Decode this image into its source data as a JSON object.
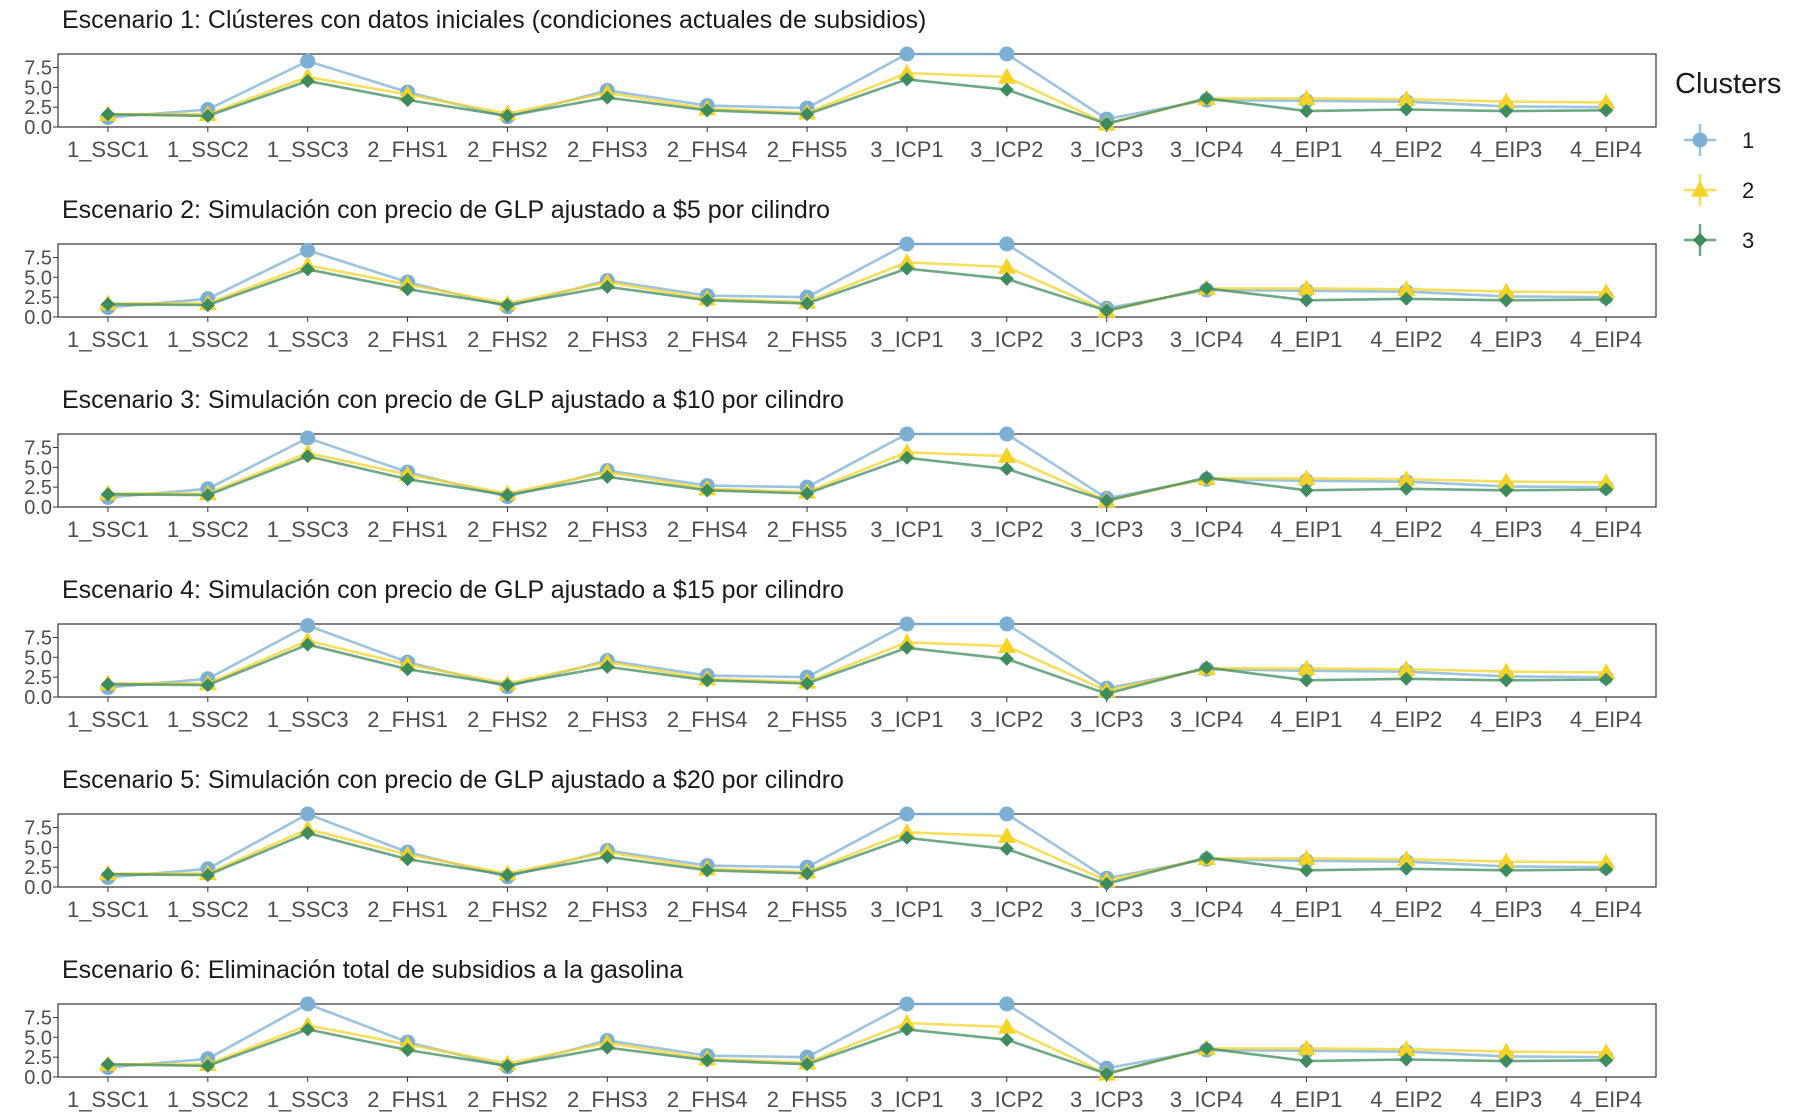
{
  "legend": {
    "title": "Clusters",
    "items": [
      {
        "label": "1",
        "color": "#7BAFD4",
        "shape": "circle"
      },
      {
        "label": "2",
        "color": "#F5D327",
        "shape": "triangle"
      },
      {
        "label": "3",
        "color": "#3D8C5E",
        "shape": "diamond"
      }
    ]
  },
  "chart_data": [
    {
      "type": "line",
      "title": "Escenario 1: Clústeres con datos iniciales (condiciones actuales de subsidios)",
      "categories": [
        "1_SSC1",
        "1_SSC2",
        "1_SSC3",
        "2_FHS1",
        "2_FHS2",
        "2_FHS3",
        "2_FHS4",
        "2_FHS5",
        "3_ICP1",
        "3_ICP2",
        "3_ICP3",
        "3_ICP4",
        "4_EIP1",
        "4_EIP2",
        "4_EIP3",
        "4_EIP4"
      ],
      "yticks": [
        "0.0",
        "2.5",
        "5.0",
        "7.5"
      ],
      "ylim": [
        0,
        9.2
      ],
      "grid": false,
      "legend_position": "right",
      "series": [
        {
          "name": "1",
          "values": [
            1.2,
            2.2,
            8.3,
            4.4,
            1.3,
            4.6,
            2.7,
            2.4,
            9.2,
            9.2,
            1.0,
            3.4,
            3.3,
            3.2,
            2.6,
            2.5
          ]
        },
        {
          "name": "2",
          "values": [
            1.6,
            1.6,
            6.3,
            4.1,
            1.7,
            4.3,
            2.3,
            1.8,
            6.8,
            6.3,
            0.4,
            3.6,
            3.6,
            3.5,
            3.2,
            3.1
          ]
        },
        {
          "name": "3",
          "values": [
            1.6,
            1.4,
            5.8,
            3.4,
            1.4,
            3.7,
            2.1,
            1.6,
            6.0,
            4.7,
            0.4,
            3.6,
            2.0,
            2.2,
            2.0,
            2.1
          ]
        }
      ]
    },
    {
      "type": "line",
      "title": "Escenario 2: Simulación con precio de GLP ajustado a $5 por cilindro",
      "categories": [
        "1_SSC1",
        "1_SSC2",
        "1_SSC3",
        "2_FHS1",
        "2_FHS2",
        "2_FHS3",
        "2_FHS4",
        "2_FHS5",
        "3_ICP1",
        "3_ICP2",
        "3_ICP3",
        "3_ICP4",
        "4_EIP1",
        "4_EIP2",
        "4_EIP3",
        "4_EIP4"
      ],
      "yticks": [
        "0.0",
        "2.5",
        "5.0",
        "7.5"
      ],
      "ylim": [
        0,
        9.2
      ],
      "grid": false,
      "legend_position": "right",
      "series": [
        {
          "name": "1",
          "values": [
            1.2,
            2.3,
            8.4,
            4.4,
            1.3,
            4.6,
            2.7,
            2.5,
            9.2,
            9.2,
            1.1,
            3.4,
            3.3,
            3.2,
            2.6,
            2.5
          ]
        },
        {
          "name": "2",
          "values": [
            1.7,
            1.7,
            6.5,
            4.1,
            1.7,
            4.4,
            2.3,
            1.9,
            6.9,
            6.3,
            0.8,
            3.6,
            3.6,
            3.5,
            3.2,
            3.1
          ]
        },
        {
          "name": "3",
          "values": [
            1.6,
            1.5,
            6.0,
            3.5,
            1.5,
            3.8,
            2.1,
            1.7,
            6.1,
            4.8,
            0.8,
            3.6,
            2.1,
            2.3,
            2.1,
            2.2
          ]
        }
      ]
    },
    {
      "type": "line",
      "title": "Escenario 3: Simulación con precio de GLP ajustado a $10 por cilindro",
      "categories": [
        "1_SSC1",
        "1_SSC2",
        "1_SSC3",
        "2_FHS1",
        "2_FHS2",
        "2_FHS3",
        "2_FHS4",
        "2_FHS5",
        "3_ICP1",
        "3_ICP2",
        "3_ICP3",
        "3_ICP4",
        "4_EIP1",
        "4_EIP2",
        "4_EIP3",
        "4_EIP4"
      ],
      "yticks": [
        "0.0",
        "2.5",
        "5.0",
        "7.5"
      ],
      "ylim": [
        0,
        9.2
      ],
      "grid": false,
      "legend_position": "right",
      "series": [
        {
          "name": "1",
          "values": [
            1.2,
            2.3,
            8.7,
            4.4,
            1.3,
            4.6,
            2.7,
            2.5,
            9.2,
            9.2,
            1.1,
            3.5,
            3.3,
            3.2,
            2.6,
            2.5
          ]
        },
        {
          "name": "2",
          "values": [
            1.7,
            1.7,
            6.8,
            4.1,
            1.7,
            4.4,
            2.3,
            1.9,
            6.9,
            6.4,
            0.8,
            3.6,
            3.6,
            3.5,
            3.2,
            3.1
          ]
        },
        {
          "name": "3",
          "values": [
            1.6,
            1.5,
            6.4,
            3.5,
            1.5,
            3.8,
            2.1,
            1.7,
            6.2,
            4.8,
            0.8,
            3.7,
            2.1,
            2.3,
            2.1,
            2.2
          ]
        }
      ]
    },
    {
      "type": "line",
      "title": "Escenario 4: Simulación con precio de GLP ajustado a $15 por cilindro",
      "categories": [
        "1_SSC1",
        "1_SSC2",
        "1_SSC3",
        "2_FHS1",
        "2_FHS2",
        "2_FHS3",
        "2_FHS4",
        "2_FHS5",
        "3_ICP1",
        "3_ICP2",
        "3_ICP3",
        "3_ICP4",
        "4_EIP1",
        "4_EIP2",
        "4_EIP3",
        "4_EIP4"
      ],
      "yticks": [
        "0.0",
        "2.5",
        "5.0",
        "7.5"
      ],
      "ylim": [
        0,
        9.2
      ],
      "grid": false,
      "legend_position": "right",
      "series": [
        {
          "name": "1",
          "values": [
            1.2,
            2.3,
            9.0,
            4.4,
            1.3,
            4.6,
            2.7,
            2.5,
            9.2,
            9.2,
            1.1,
            3.5,
            3.3,
            3.2,
            2.6,
            2.5
          ]
        },
        {
          "name": "2",
          "values": [
            1.7,
            1.7,
            7.1,
            4.1,
            1.7,
            4.4,
            2.3,
            1.9,
            6.9,
            6.4,
            0.8,
            3.6,
            3.6,
            3.5,
            3.2,
            3.1
          ]
        },
        {
          "name": "3",
          "values": [
            1.6,
            1.5,
            6.6,
            3.5,
            1.5,
            3.8,
            2.1,
            1.7,
            6.2,
            4.8,
            0.4,
            3.7,
            2.1,
            2.3,
            2.1,
            2.2
          ]
        }
      ]
    },
    {
      "type": "line",
      "title": "Escenario 5: Simulación con precio de GLP ajustado a $20 por cilindro",
      "categories": [
        "1_SSC1",
        "1_SSC2",
        "1_SSC3",
        "2_FHS1",
        "2_FHS2",
        "2_FHS3",
        "2_FHS4",
        "2_FHS5",
        "3_ICP1",
        "3_ICP2",
        "3_ICP3",
        "3_ICP4",
        "4_EIP1",
        "4_EIP2",
        "4_EIP3",
        "4_EIP4"
      ],
      "yticks": [
        "0.0",
        "2.5",
        "5.0",
        "7.5"
      ],
      "ylim": [
        0,
        9.2
      ],
      "grid": false,
      "legend_position": "right",
      "series": [
        {
          "name": "1",
          "values": [
            1.2,
            2.3,
            9.2,
            4.4,
            1.3,
            4.6,
            2.7,
            2.5,
            9.2,
            9.2,
            1.1,
            3.5,
            3.3,
            3.2,
            2.6,
            2.5
          ]
        },
        {
          "name": "2",
          "values": [
            1.7,
            1.7,
            7.3,
            4.1,
            1.7,
            4.4,
            2.3,
            1.9,
            6.9,
            6.4,
            0.8,
            3.6,
            3.6,
            3.5,
            3.2,
            3.1
          ]
        },
        {
          "name": "3",
          "values": [
            1.6,
            1.5,
            6.8,
            3.5,
            1.5,
            3.8,
            2.1,
            1.7,
            6.2,
            4.8,
            0.4,
            3.7,
            2.1,
            2.3,
            2.1,
            2.2
          ]
        }
      ]
    },
    {
      "type": "line",
      "title": "Escenario 6: Eliminación total de subsidios a la gasolina",
      "categories": [
        "1_SSC1",
        "1_SSC2",
        "1_SSC3",
        "2_FHS1",
        "2_FHS2",
        "2_FHS3",
        "2_FHS4",
        "2_FHS5",
        "3_ICP1",
        "3_ICP2",
        "3_ICP3",
        "3_ICP4",
        "4_EIP1",
        "4_EIP2",
        "4_EIP3",
        "4_EIP4"
      ],
      "yticks": [
        "0.0",
        "2.5",
        "5.0",
        "7.5"
      ],
      "ylim": [
        0,
        9.2
      ],
      "grid": false,
      "legend_position": "right",
      "series": [
        {
          "name": "1",
          "values": [
            1.2,
            2.3,
            9.2,
            4.4,
            1.3,
            4.6,
            2.7,
            2.5,
            9.2,
            9.2,
            1.1,
            3.4,
            3.3,
            3.2,
            2.6,
            2.5
          ]
        },
        {
          "name": "2",
          "values": [
            1.6,
            1.6,
            6.5,
            4.1,
            1.7,
            4.3,
            2.3,
            1.8,
            6.8,
            6.3,
            0.4,
            3.6,
            3.6,
            3.5,
            3.2,
            3.1
          ]
        },
        {
          "name": "3",
          "values": [
            1.6,
            1.4,
            6.0,
            3.4,
            1.4,
            3.7,
            2.1,
            1.6,
            6.0,
            4.7,
            0.4,
            3.6,
            2.0,
            2.2,
            2.0,
            2.1
          ]
        }
      ]
    }
  ]
}
